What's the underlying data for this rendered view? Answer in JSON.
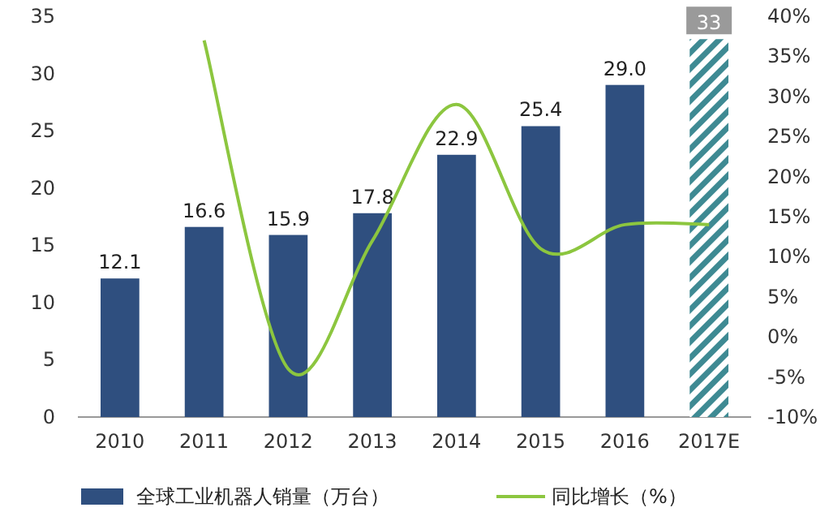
{
  "chart_data": {
    "type": "bar",
    "categories": [
      "2010",
      "2011",
      "2012",
      "2013",
      "2014",
      "2015",
      "2016",
      "2017E"
    ],
    "series": [
      {
        "name": "全球工业机器人销量（万台）",
        "color": "#2f4f7f",
        "colors": [
          "#2f4f7f",
          "#2f4f7f",
          "#2f4f7f",
          "#2f4f7f",
          "#2f4f7f",
          "#2f4f7f",
          "#2f4f7f",
          "#3e8a93"
        ],
        "values": [
          12.1,
          16.6,
          15.9,
          17.8,
          22.9,
          25.4,
          29.0,
          33
        ],
        "value_labels": [
          "12.1",
          "16.6",
          "15.9",
          "17.8",
          "22.9",
          "25.4",
          "29.0",
          "33"
        ]
      },
      {
        "name": "同比增长（%）",
        "type": "line",
        "axis": "y2",
        "color": "#8cc63f",
        "values": [
          null,
          37,
          -4,
          12,
          29,
          11,
          14,
          14
        ]
      }
    ],
    "ylim": [
      0,
      35
    ],
    "yticks": [
      0,
      5,
      10,
      15,
      20,
      25,
      30,
      35
    ],
    "y2lim": [
      -10,
      40
    ],
    "y2ticks": [
      {
        "value": -10,
        "label": "-10%"
      },
      {
        "value": -5,
        "label": "-5%"
      },
      {
        "value": 0,
        "label": "0%"
      },
      {
        "value": 5,
        "label": "5%"
      },
      {
        "value": 10,
        "label": "10%"
      },
      {
        "value": 15,
        "label": "15%"
      },
      {
        "value": 20,
        "label": "20%"
      },
      {
        "value": 25,
        "label": "25%"
      },
      {
        "value": 30,
        "label": "30%"
      },
      {
        "value": 35,
        "label": "35%"
      },
      {
        "value": 40,
        "label": "40%"
      }
    ],
    "legend": "bottom",
    "grid": false
  }
}
